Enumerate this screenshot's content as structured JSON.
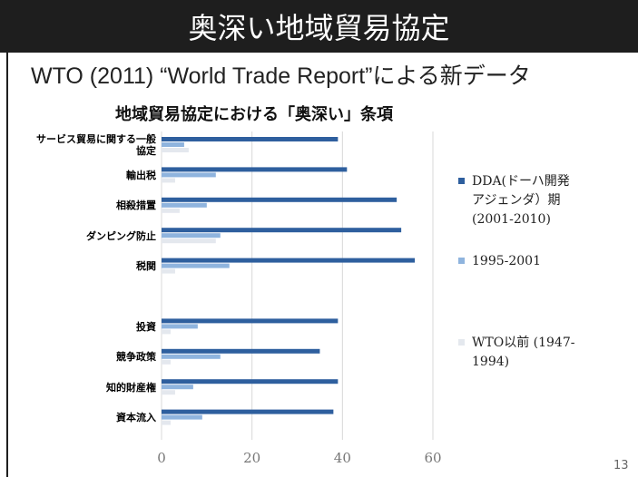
{
  "slide": {
    "title": "奥深い地域貿易協定",
    "subtitle": "WTO (2011) “World Trade Report”による新データ",
    "page_number": "13"
  },
  "chart_data": {
    "type": "hbar",
    "title": "地域貿易協定における「奥深い」条項",
    "categories": [
      "サービス貿易に関する一般協定",
      "輸出税",
      "相殺措置",
      "ダンピング防止",
      "税関",
      null,
      "投資",
      "競争政策",
      "知的財産権",
      "資本流入"
    ],
    "series": [
      {
        "name": "DDA(ドーハ開発アジェンダ）期 (2001-2010)",
        "color": "#2e5f9e",
        "values": [
          39,
          41,
          52,
          53,
          56,
          null,
          39,
          35,
          39,
          38
        ]
      },
      {
        "name": "1995-2001",
        "color": "#8fb4de",
        "values": [
          5,
          12,
          10,
          13,
          15,
          null,
          8,
          13,
          7,
          9
        ]
      },
      {
        "name": "WTO以前 (1947-1994)",
        "color": "#e4e8ee",
        "values": [
          6,
          3,
          4,
          12,
          3,
          null,
          2,
          2,
          3,
          2
        ]
      }
    ],
    "xlim": [
      0,
      60
    ],
    "xticks": [
      0,
      20,
      40,
      60
    ],
    "grid": true
  }
}
